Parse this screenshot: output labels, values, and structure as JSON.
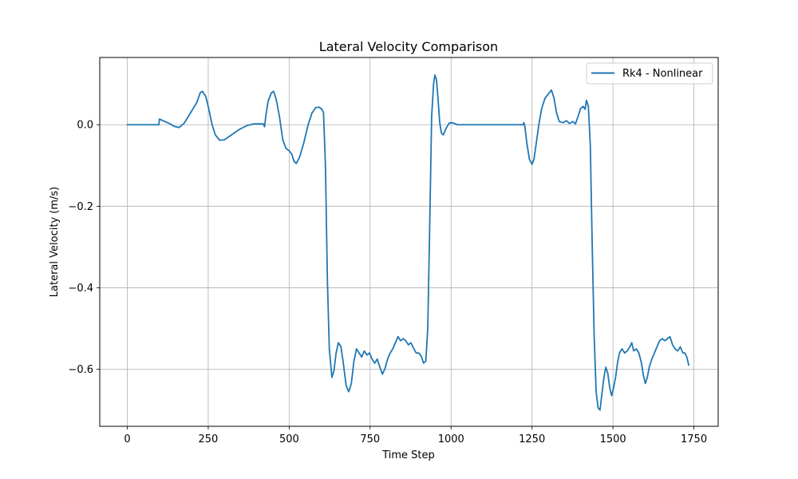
{
  "chart_data": {
    "type": "line",
    "title": "Lateral Velocity Comparison",
    "xlabel": "Time Step",
    "ylabel": "Lateral Velocity (m/s)",
    "xlim": [
      -85,
      1825
    ],
    "ylim": [
      -0.74,
      0.165
    ],
    "xticks": [
      0,
      250,
      500,
      750,
      1000,
      1250,
      1500,
      1750
    ],
    "yticks": [
      -0.6,
      -0.4,
      -0.2,
      0.0
    ],
    "ytick_labels": [
      "−0.6",
      "−0.4",
      "−0.2",
      "0.0"
    ],
    "grid": true,
    "legend_position": "top-right",
    "line_color": "#1f77b4",
    "series": [
      {
        "name": "Rk4 - Nonlinear",
        "points": [
          [
            0,
            0.0
          ],
          [
            50,
            0.0
          ],
          [
            98,
            0.0
          ],
          [
            99,
            0.014
          ],
          [
            110,
            0.01
          ],
          [
            130,
            0.003
          ],
          [
            145,
            -0.004
          ],
          [
            160,
            -0.007
          ],
          [
            175,
            0.003
          ],
          [
            190,
            0.022
          ],
          [
            205,
            0.042
          ],
          [
            215,
            0.055
          ],
          [
            225,
            0.078
          ],
          [
            232,
            0.082
          ],
          [
            242,
            0.07
          ],
          [
            250,
            0.045
          ],
          [
            262,
            0.0
          ],
          [
            272,
            -0.025
          ],
          [
            285,
            -0.038
          ],
          [
            300,
            -0.037
          ],
          [
            320,
            -0.026
          ],
          [
            345,
            -0.012
          ],
          [
            370,
            -0.002
          ],
          [
            390,
            0.002
          ],
          [
            420,
            0.002
          ],
          [
            424,
            -0.005
          ],
          [
            428,
            0.022
          ],
          [
            435,
            0.058
          ],
          [
            445,
            0.078
          ],
          [
            452,
            0.082
          ],
          [
            460,
            0.062
          ],
          [
            470,
            0.02
          ],
          [
            480,
            -0.036
          ],
          [
            490,
            -0.058
          ],
          [
            500,
            -0.064
          ],
          [
            508,
            -0.072
          ],
          [
            515,
            -0.09
          ],
          [
            522,
            -0.095
          ],
          [
            532,
            -0.08
          ],
          [
            545,
            -0.045
          ],
          [
            558,
            -0.002
          ],
          [
            570,
            0.028
          ],
          [
            582,
            0.042
          ],
          [
            592,
            0.043
          ],
          [
            600,
            0.039
          ],
          [
            606,
            0.03
          ],
          [
            612,
            -0.1
          ],
          [
            618,
            -0.38
          ],
          [
            624,
            -0.55
          ],
          [
            632,
            -0.62
          ],
          [
            638,
            -0.605
          ],
          [
            645,
            -0.56
          ],
          [
            652,
            -0.535
          ],
          [
            660,
            -0.545
          ],
          [
            668,
            -0.59
          ],
          [
            676,
            -0.64
          ],
          [
            684,
            -0.655
          ],
          [
            692,
            -0.635
          ],
          [
            700,
            -0.58
          ],
          [
            708,
            -0.55
          ],
          [
            716,
            -0.56
          ],
          [
            724,
            -0.57
          ],
          [
            732,
            -0.555
          ],
          [
            740,
            -0.565
          ],
          [
            748,
            -0.56
          ],
          [
            756,
            -0.575
          ],
          [
            764,
            -0.585
          ],
          [
            772,
            -0.575
          ],
          [
            780,
            -0.595
          ],
          [
            788,
            -0.612
          ],
          [
            796,
            -0.598
          ],
          [
            804,
            -0.575
          ],
          [
            812,
            -0.56
          ],
          [
            820,
            -0.55
          ],
          [
            828,
            -0.535
          ],
          [
            836,
            -0.52
          ],
          [
            844,
            -0.53
          ],
          [
            852,
            -0.525
          ],
          [
            860,
            -0.53
          ],
          [
            868,
            -0.54
          ],
          [
            876,
            -0.535
          ],
          [
            884,
            -0.548
          ],
          [
            892,
            -0.56
          ],
          [
            900,
            -0.56
          ],
          [
            908,
            -0.568
          ],
          [
            915,
            -0.585
          ],
          [
            922,
            -0.58
          ],
          [
            928,
            -0.5
          ],
          [
            934,
            -0.25
          ],
          [
            940,
            0.02
          ],
          [
            946,
            0.1
          ],
          [
            950,
            0.122
          ],
          [
            955,
            0.11
          ],
          [
            960,
            0.06
          ],
          [
            965,
            0.005
          ],
          [
            970,
            -0.02
          ],
          [
            976,
            -0.025
          ],
          [
            984,
            -0.01
          ],
          [
            994,
            0.004
          ],
          [
            1004,
            0.005
          ],
          [
            1020,
            0.0
          ],
          [
            1050,
            0.0
          ],
          [
            1100,
            0.0
          ],
          [
            1150,
            0.0
          ],
          [
            1200,
            0.0
          ],
          [
            1222,
            0.0
          ],
          [
            1225,
            0.005
          ],
          [
            1228,
            -0.005
          ],
          [
            1234,
            -0.045
          ],
          [
            1242,
            -0.085
          ],
          [
            1250,
            -0.097
          ],
          [
            1256,
            -0.085
          ],
          [
            1264,
            -0.04
          ],
          [
            1272,
            0.005
          ],
          [
            1280,
            0.04
          ],
          [
            1290,
            0.065
          ],
          [
            1300,
            0.075
          ],
          [
            1310,
            0.085
          ],
          [
            1318,
            0.065
          ],
          [
            1326,
            0.028
          ],
          [
            1334,
            0.008
          ],
          [
            1346,
            0.005
          ],
          [
            1356,
            0.01
          ],
          [
            1366,
            0.003
          ],
          [
            1376,
            0.008
          ],
          [
            1384,
            0.002
          ],
          [
            1392,
            0.02
          ],
          [
            1400,
            0.04
          ],
          [
            1408,
            0.045
          ],
          [
            1414,
            0.038
          ],
          [
            1418,
            0.06
          ],
          [
            1424,
            0.045
          ],
          [
            1430,
            -0.05
          ],
          [
            1436,
            -0.3
          ],
          [
            1442,
            -0.52
          ],
          [
            1448,
            -0.655
          ],
          [
            1454,
            -0.695
          ],
          [
            1460,
            -0.7
          ],
          [
            1466,
            -0.66
          ],
          [
            1472,
            -0.62
          ],
          [
            1478,
            -0.595
          ],
          [
            1484,
            -0.61
          ],
          [
            1490,
            -0.645
          ],
          [
            1496,
            -0.665
          ],
          [
            1502,
            -0.645
          ],
          [
            1508,
            -0.62
          ],
          [
            1514,
            -0.585
          ],
          [
            1520,
            -0.56
          ],
          [
            1528,
            -0.55
          ],
          [
            1536,
            -0.56
          ],
          [
            1544,
            -0.555
          ],
          [
            1552,
            -0.545
          ],
          [
            1558,
            -0.535
          ],
          [
            1564,
            -0.555
          ],
          [
            1572,
            -0.55
          ],
          [
            1580,
            -0.56
          ],
          [
            1588,
            -0.585
          ],
          [
            1594,
            -0.615
          ],
          [
            1600,
            -0.635
          ],
          [
            1606,
            -0.62
          ],
          [
            1612,
            -0.595
          ],
          [
            1620,
            -0.575
          ],
          [
            1628,
            -0.56
          ],
          [
            1636,
            -0.545
          ],
          [
            1644,
            -0.53
          ],
          [
            1652,
            -0.525
          ],
          [
            1660,
            -0.53
          ],
          [
            1668,
            -0.525
          ],
          [
            1676,
            -0.52
          ],
          [
            1684,
            -0.54
          ],
          [
            1692,
            -0.55
          ],
          [
            1700,
            -0.555
          ],
          [
            1708,
            -0.545
          ],
          [
            1716,
            -0.56
          ],
          [
            1722,
            -0.56
          ],
          [
            1728,
            -0.57
          ],
          [
            1734,
            -0.59
          ]
        ]
      }
    ]
  }
}
